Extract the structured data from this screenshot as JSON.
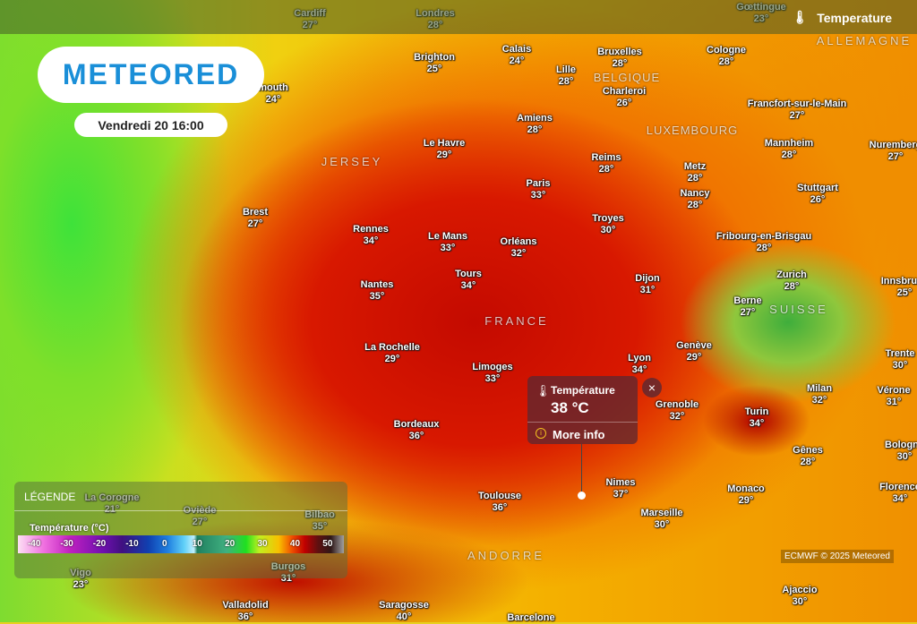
{
  "header": {
    "layer_label": "Temperature",
    "layer_icon": "thermometer-icon",
    "logo": "METEORED",
    "datetime": "Vendredi 20 16:00"
  },
  "countries": [
    "FRANCE",
    "BELGIQUE",
    "LUXEMBOURG",
    "ALLEMAGNE",
    "SUISSE",
    "ANDORRE",
    "JERSEY"
  ],
  "cities": [
    {
      "name": "Cardiff",
      "temp": "27°"
    },
    {
      "name": "Londres",
      "temp": "28°"
    },
    {
      "name": "Calais",
      "temp": "24°"
    },
    {
      "name": "Bruxelles",
      "temp": "28°"
    },
    {
      "name": "Cologne",
      "temp": "28°"
    },
    {
      "name": "Brighton",
      "temp": "25°"
    },
    {
      "name": "Lille",
      "temp": "28°"
    },
    {
      "name": "Charleroi",
      "temp": "26°"
    },
    {
      "name": "mouth",
      "temp": "24°"
    },
    {
      "name": "Amiens",
      "temp": "28°"
    },
    {
      "name": "Francfort-sur-le-Main",
      "temp": "27°"
    },
    {
      "name": "Le Havre",
      "temp": "29°"
    },
    {
      "name": "Reims",
      "temp": "28°"
    },
    {
      "name": "Mannheim",
      "temp": "28°"
    },
    {
      "name": "Nuremberg",
      "temp": "27°"
    },
    {
      "name": "Metz",
      "temp": "28°"
    },
    {
      "name": "Paris",
      "temp": "33°"
    },
    {
      "name": "Stuttgart",
      "temp": "26°"
    },
    {
      "name": "Nancy",
      "temp": "28°"
    },
    {
      "name": "Brest",
      "temp": "27°"
    },
    {
      "name": "Troyes",
      "temp": "30°"
    },
    {
      "name": "Rennes",
      "temp": "34°"
    },
    {
      "name": "Le Mans",
      "temp": "33°"
    },
    {
      "name": "Orléans",
      "temp": "32°"
    },
    {
      "name": "Fribourg-en-Brisgau",
      "temp": "28°"
    },
    {
      "name": "Tours",
      "temp": "34°"
    },
    {
      "name": "Zurich",
      "temp": "28°"
    },
    {
      "name": "Nantes",
      "temp": "35°"
    },
    {
      "name": "Dijon",
      "temp": "31°"
    },
    {
      "name": "Berne",
      "temp": "27°"
    },
    {
      "name": "Innsbruck",
      "temp": "25°"
    },
    {
      "name": "Genève",
      "temp": "29°"
    },
    {
      "name": "La Rochelle",
      "temp": "29°"
    },
    {
      "name": "Limoges",
      "temp": "33°"
    },
    {
      "name": "Lyon",
      "temp": "34°"
    },
    {
      "name": "Trente",
      "temp": "30°"
    },
    {
      "name": "Milan",
      "temp": "32°"
    },
    {
      "name": "Vérone",
      "temp": "31°"
    },
    {
      "name": "Grenoble",
      "temp": "32°"
    },
    {
      "name": "Turin",
      "temp": "34°"
    },
    {
      "name": "Bordeaux",
      "temp": "36°"
    },
    {
      "name": "Gênes",
      "temp": "28°"
    },
    {
      "name": "Bologne",
      "temp": "30°"
    },
    {
      "name": "Nimes",
      "temp": "37°"
    },
    {
      "name": "Monaco",
      "temp": "29°"
    },
    {
      "name": "Florence",
      "temp": "34°"
    },
    {
      "name": "Toulouse",
      "temp": "36°"
    },
    {
      "name": "Marseille",
      "temp": "30°"
    },
    {
      "name": "La Corogne",
      "temp": "21°"
    },
    {
      "name": "Oviède",
      "temp": "27°"
    },
    {
      "name": "Bilbao",
      "temp": "35°"
    },
    {
      "name": "Vigo",
      "temp": "23°"
    },
    {
      "name": "Burgos",
      "temp": "31°"
    },
    {
      "name": "Valladolid",
      "temp": "36°"
    },
    {
      "name": "Saragosse",
      "temp": "40°"
    },
    {
      "name": "Ajaccio",
      "temp": "30°"
    },
    {
      "name": "Barcelone",
      "temp": ""
    },
    {
      "name": "Gœttingue",
      "temp": "23°"
    }
  ],
  "legend": {
    "title": "LÉGENDE",
    "unit": "Température (°C)",
    "ticks": [
      "-40",
      "-30",
      "-20",
      "-10",
      "0",
      "10",
      "20",
      "30",
      "40",
      "50"
    ]
  },
  "popup": {
    "label": "Température",
    "value": "38 °C",
    "more": "More info",
    "close": "×",
    "icon": "thermometer-icon"
  },
  "credit": "ECMWF © 2025 Meteored"
}
